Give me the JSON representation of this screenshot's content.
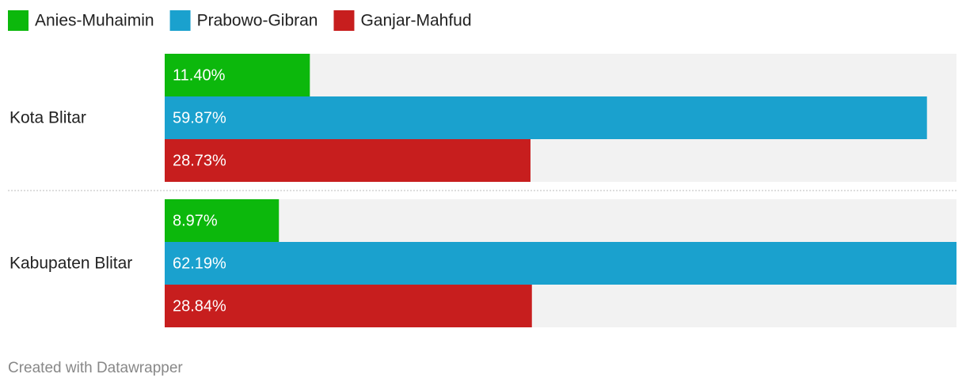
{
  "chart_data": {
    "type": "grouped-bar",
    "categories": [
      "Kota Blitar",
      "Kabupaten Blitar"
    ],
    "series": [
      {
        "name": "Anies-Muhaimin",
        "color": "#0cb80c",
        "values": [
          11.4,
          8.97
        ],
        "value_labels": [
          "11.40%",
          "8.97%"
        ]
      },
      {
        "name": "Prabowo-Gibran",
        "color": "#1aa1ce",
        "values": [
          59.87,
          62.19
        ],
        "value_labels": [
          "59.87%",
          "62.19%"
        ]
      },
      {
        "name": "Ganjar-Mahfud",
        "color": "#c71e1e",
        "values": [
          28.73,
          28.84
        ],
        "value_labels": [
          "28.73%",
          "28.84%"
        ]
      }
    ],
    "xlim": [
      0,
      62.19
    ],
    "credit": "Created with Datawrapper"
  }
}
